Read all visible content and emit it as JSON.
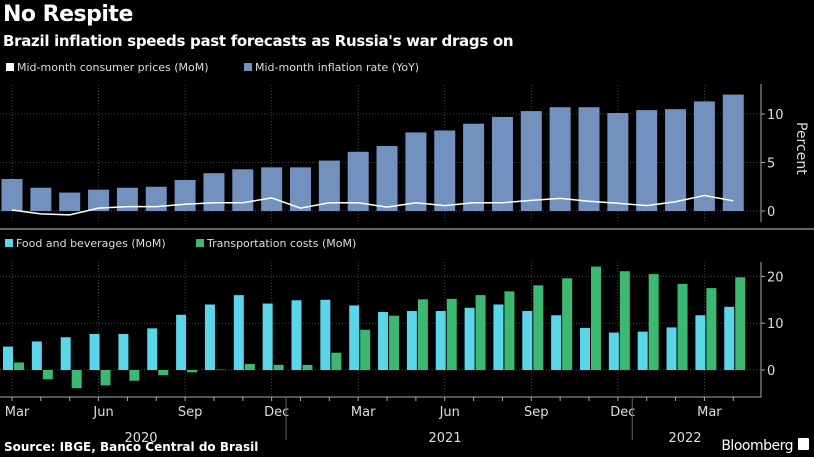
{
  "title": "No Respite",
  "subtitle": "Brazil inflation speeds past forecasts as Russia's war drags on",
  "source": "Source: IBGE, Banco Central do Brasil",
  "brand": "Bloomberg",
  "watermark": "Bloomberg",
  "colors": {
    "yoy": "#7391bf",
    "mom_line": "#ffffff",
    "food": "#5ad6e8",
    "transport": "#3db872",
    "background": "#000000"
  },
  "chart_data": [
    {
      "type": "bar",
      "ylabel": "Percent",
      "ylim": [
        -2.5,
        13
      ],
      "yticks": [
        0,
        5,
        10
      ],
      "grid": true,
      "legend": "top-left",
      "x": [
        "2020-03",
        "2020-04",
        "2020-05",
        "2020-06",
        "2020-07",
        "2020-08",
        "2020-09",
        "2020-10",
        "2020-11",
        "2020-12",
        "2021-01",
        "2021-02",
        "2021-03",
        "2021-04",
        "2021-05",
        "2021-06",
        "2021-07",
        "2021-08",
        "2021-09",
        "2021-10",
        "2021-11",
        "2021-12",
        "2022-01",
        "2022-02",
        "2022-03",
        "2022-04"
      ],
      "series": [
        {
          "name": "Mid-month consumer prices (MoM)",
          "kind": "line",
          "values": [
            0.1,
            -0.3,
            -0.4,
            0.3,
            0.45,
            0.45,
            0.7,
            0.85,
            0.85,
            1.35,
            0.3,
            0.85,
            0.85,
            0.4,
            0.85,
            0.55,
            0.85,
            0.85,
            1.1,
            1.3,
            1.0,
            0.8,
            0.55,
            0.95,
            1.6,
            1.05
          ]
        },
        {
          "name": "Mid-month inflation rate (YoY)",
          "kind": "bar",
          "values": [
            3.3,
            2.4,
            1.9,
            2.2,
            2.4,
            2.5,
            3.2,
            3.9,
            4.3,
            4.5,
            4.5,
            5.2,
            6.1,
            6.7,
            8.1,
            8.3,
            9.0,
            9.7,
            10.3,
            10.7,
            10.7,
            10.1,
            10.4,
            10.5,
            11.3,
            12.0
          ]
        }
      ]
    },
    {
      "type": "bar",
      "ylim": [
        -6,
        24
      ],
      "yticks": [
        0,
        10,
        20
      ],
      "grid": true,
      "legend": "top-left",
      "x": [
        "2020-03",
        "2020-04",
        "2020-05",
        "2020-06",
        "2020-07",
        "2020-08",
        "2020-09",
        "2020-10",
        "2020-11",
        "2020-12",
        "2021-01",
        "2021-02",
        "2021-03",
        "2021-04",
        "2021-05",
        "2021-06",
        "2021-07",
        "2021-08",
        "2021-09",
        "2021-10",
        "2021-11",
        "2021-12",
        "2022-01",
        "2022-02",
        "2022-03",
        "2022-04"
      ],
      "xtick_labels": [
        "Mar",
        "Jun",
        "Sep",
        "Dec",
        "Mar",
        "Jun",
        "Sep",
        "Dec",
        "Mar"
      ],
      "year_labels": [
        "2020",
        "2021",
        "2022"
      ],
      "series": [
        {
          "name": "Food and beverages (MoM)",
          "values": [
            5.0,
            6.1,
            7.0,
            7.7,
            7.7,
            8.9,
            11.8,
            14.0,
            16.0,
            14.2,
            14.9,
            15.0,
            13.8,
            12.4,
            12.6,
            12.6,
            13.3,
            14.0,
            12.6,
            11.7,
            9.0,
            8.0,
            8.2,
            9.1,
            11.7,
            13.5
          ]
        },
        {
          "name": "Transportation costs (MoM)",
          "values": [
            1.6,
            -2.0,
            -3.9,
            -3.3,
            -2.3,
            -1.1,
            -0.5,
            0.1,
            1.3,
            1.1,
            1.1,
            3.7,
            8.6,
            11.6,
            15.1,
            15.2,
            16.0,
            16.8,
            18.1,
            19.6,
            22.1,
            21.1,
            20.5,
            18.4,
            17.5,
            19.8
          ]
        }
      ]
    }
  ]
}
